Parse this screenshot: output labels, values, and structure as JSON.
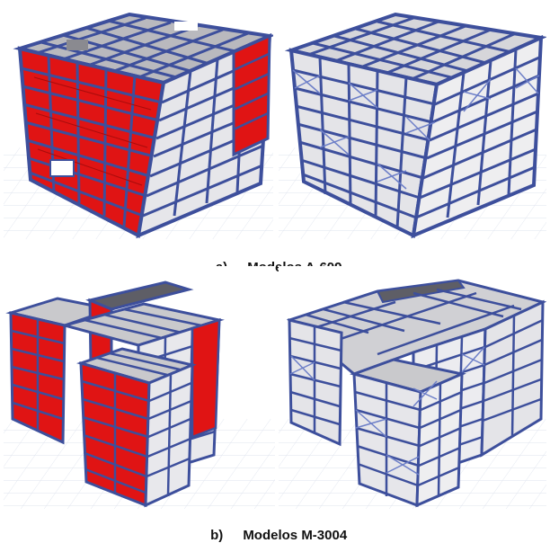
{
  "captions": {
    "a_letter": "a)",
    "a_text": "Modelos A-609",
    "b_letter": "b)",
    "b_text": "Modelos M-3004"
  },
  "colors": {
    "wall_red": "#e01414",
    "wall_red_dark": "#a80c0c",
    "frame_blue": "#3d4f9c",
    "frame_blue_light": "#6d7fc8",
    "slab_grey": "#c9c9cc",
    "grid_line": "#dfe4ee"
  },
  "icons": [
    "building-model-walls",
    "building-model-frame"
  ]
}
